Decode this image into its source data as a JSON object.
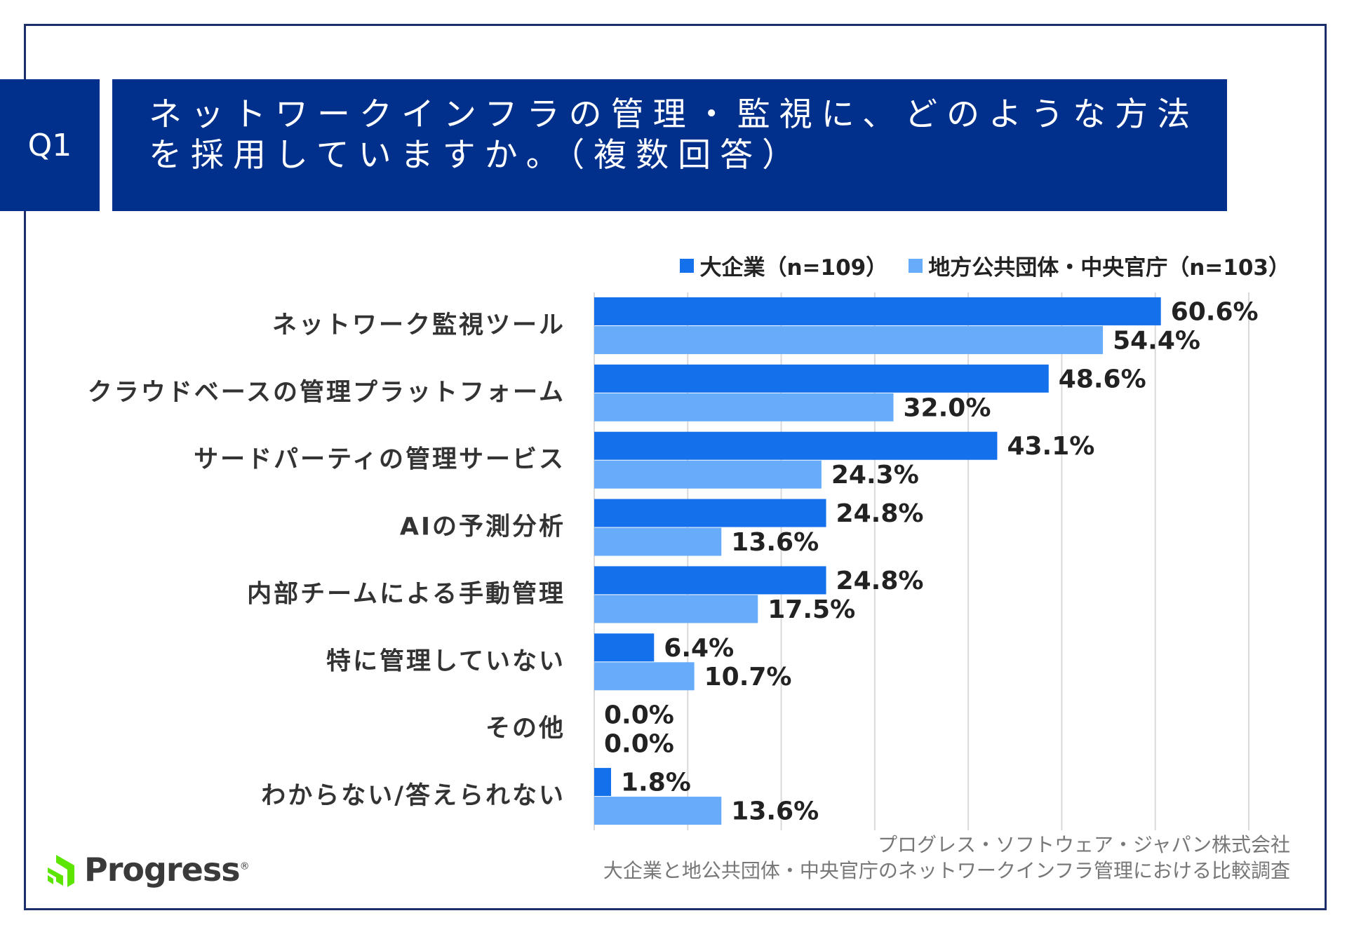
{
  "chart_data": {
    "type": "bar",
    "orientation": "horizontal",
    "question": "Q1",
    "title": "ネットワークインフラの管理・監視に、どのような方法を採用していますか。（複数回答）",
    "categories": [
      "ネットワーク監視ツール",
      "クラウドベースの管理プラットフォーム",
      "サードパーティの管理サービス",
      "AIの予測分析",
      "内部チームによる手動管理",
      "特に管理していない",
      "その他",
      "わからない/答えられない"
    ],
    "series": [
      {
        "name": "大企業（n=109）",
        "color": "#1470eb",
        "values": [
          60.6,
          48.6,
          43.1,
          24.8,
          24.8,
          6.4,
          0,
          1.8
        ],
        "value_labels": [
          "60.6%",
          "48.6%",
          "43.1%",
          "24.8%",
          "24.8%",
          "6.4%",
          "0.0%",
          "1.8%"
        ]
      },
      {
        "name": "地方公共団体・中央官庁（n=103）",
        "color": "#66acfa",
        "values": [
          54.4,
          32.0,
          24.3,
          13.6,
          17.5,
          10.7,
          0,
          13.6
        ],
        "value_labels": [
          "54.4%",
          "32.0%",
          "24.3%",
          "13.6%",
          "17.5%",
          "10.7%",
          "0.0%",
          "13.6%"
        ]
      }
    ],
    "xlim": [
      0,
      70
    ],
    "xticks": [
      0,
      10,
      20,
      30,
      40,
      50,
      60,
      70
    ],
    "grid": true,
    "source": [
      "プログレス・ソフトウェア・ジャパン株式会社",
      "大企業と地公共団体・中央官庁のネットワークインフラ管理における比較調査"
    ],
    "logo": {
      "name": "Progress",
      "mark": "®"
    }
  }
}
